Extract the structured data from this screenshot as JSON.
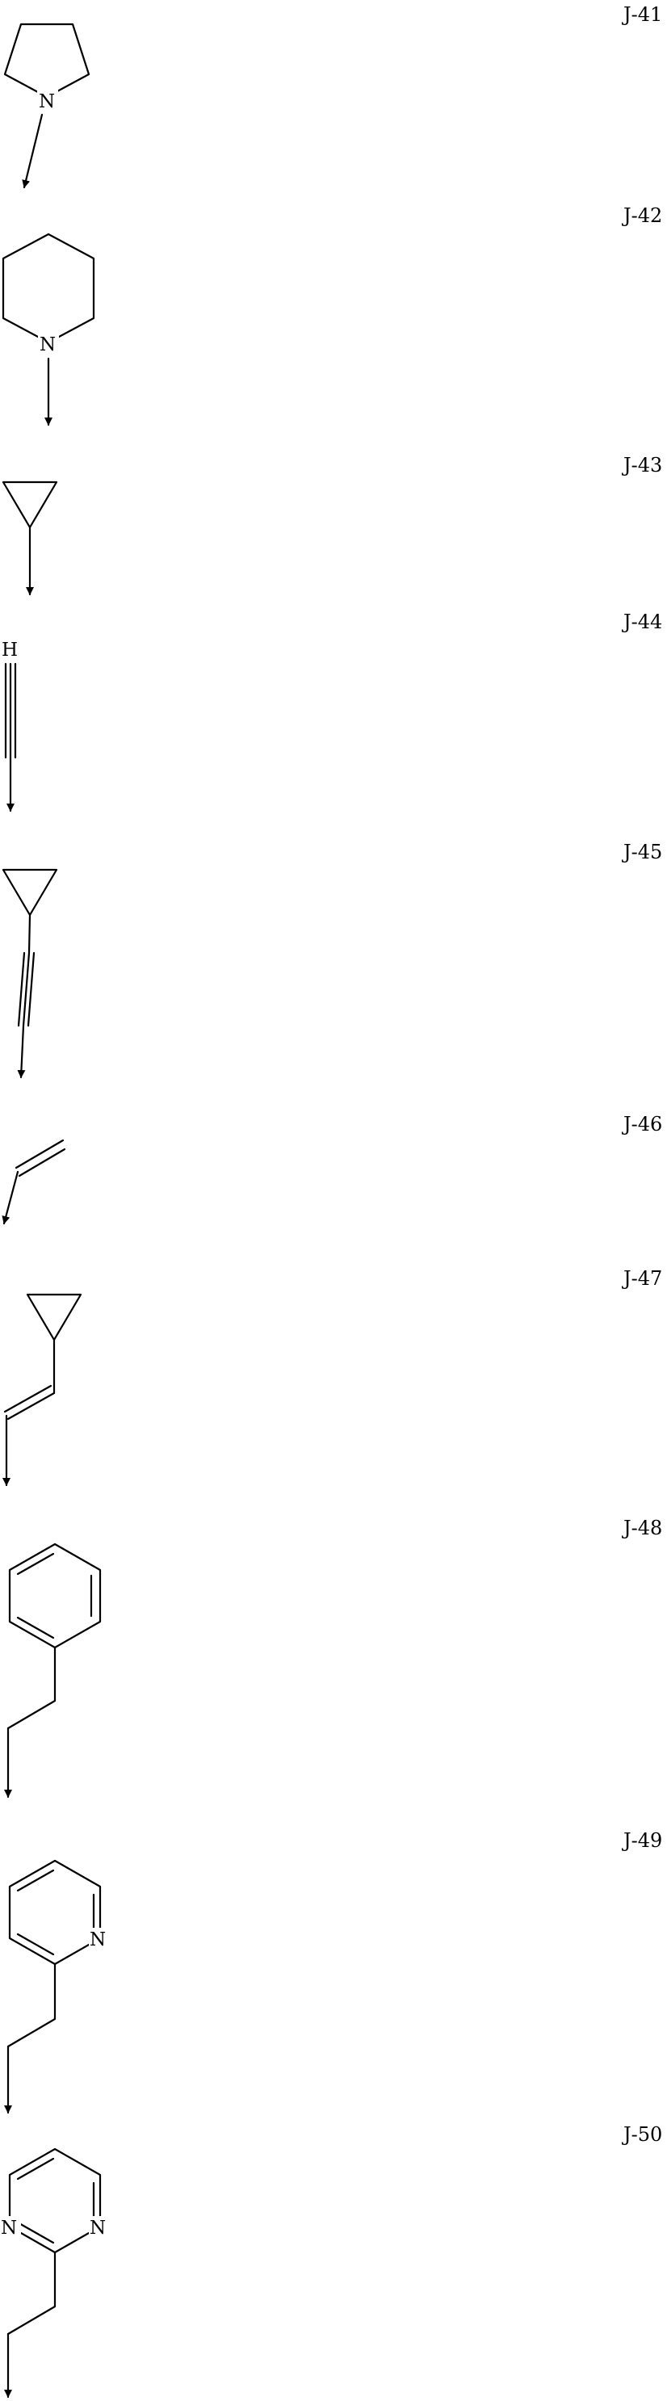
{
  "structures": [
    {
      "id": "J-41",
      "atoms": [
        "N"
      ],
      "name": "pyrrolidin-1-yl"
    },
    {
      "id": "J-42",
      "atoms": [
        "N"
      ],
      "name": "piperidin-1-yl"
    },
    {
      "id": "J-43",
      "atoms": [],
      "name": "cyclopropyl"
    },
    {
      "id": "J-44",
      "atoms": [
        "H"
      ],
      "name": "ethynyl"
    },
    {
      "id": "J-45",
      "atoms": [],
      "name": "cyclopropylethynyl"
    },
    {
      "id": "J-46",
      "atoms": [],
      "name": "vinyl"
    },
    {
      "id": "J-47",
      "atoms": [],
      "name": "2-cyclopropylvinyl"
    },
    {
      "id": "J-48",
      "atoms": [],
      "name": "2-phenylethyl"
    },
    {
      "id": "J-49",
      "atoms": [
        "N"
      ],
      "name": "2-(pyridin-2-yl)ethyl"
    },
    {
      "id": "J-50",
      "atoms": [
        "N",
        "N"
      ],
      "name": "2-(pyrimidin-2-yl)ethyl"
    }
  ]
}
